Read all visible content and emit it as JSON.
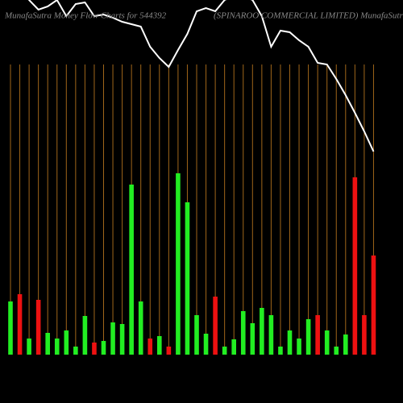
{
  "chart_data": {
    "type": "bar",
    "title": "MunafaSutra  Money Flow  Charts for 544392",
    "subtitle": "(SPINAROO COMMERCIAL  LIMITED) MunafaSutra.com",
    "categories": [
      null,
      null,
      null,
      null,
      null,
      null,
      null,
      null,
      null,
      null,
      null,
      null,
      null,
      null,
      null,
      null,
      null,
      null,
      null,
      null,
      null,
      null,
      null,
      null,
      null,
      null,
      null,
      null,
      null,
      null,
      null,
      null,
      null,
      null,
      null,
      null,
      null,
      null,
      null,
      null
    ],
    "values": [
      66,
      75,
      20,
      68,
      27,
      20,
      30,
      10,
      48,
      15,
      17,
      40,
      38,
      211,
      66,
      20,
      23,
      10,
      225,
      189,
      49,
      26,
      72,
      10,
      19,
      54,
      39,
      58,
      49,
      10,
      30,
      20,
      44,
      49,
      30,
      10,
      25,
      220,
      49,
      123
    ],
    "colors": [
      "#22ee22",
      "#ee1111",
      "#22ee22",
      "#ee1111",
      "#22ee22",
      "#22ee22",
      "#22ee22",
      "#22ee22",
      "#22ee22",
      "#ee1111",
      "#22ee22",
      "#22ee22",
      "#22ee22",
      "#22ee22",
      "#22ee22",
      "#ee1111",
      "#22ee22",
      "#ee1111",
      "#22ee22",
      "#22ee22",
      "#22ee22",
      "#22ee22",
      "#ee1111",
      "#22ee22",
      "#22ee22",
      "#22ee22",
      "#22ee22",
      "#22ee22",
      "#22ee22",
      "#22ee22",
      "#22ee22",
      "#22ee22",
      "#22ee22",
      "#ee1111",
      "#22ee22",
      "#22ee22",
      "#22ee22",
      "#ee1111",
      "#ee1111",
      "#ee1111"
    ],
    "line_values": [
      500,
      460,
      440,
      428,
      432,
      440,
      420,
      435,
      437,
      420,
      422,
      418,
      413,
      410,
      407,
      382,
      368,
      357,
      378,
      398,
      426,
      430,
      426,
      440,
      445,
      445,
      440,
      420,
      382,
      402,
      400,
      390,
      382,
      362,
      360,
      342,
      322,
      300,
      277,
      252
    ],
    "line_color": "#ffffff",
    "grid_color": "#a0661a",
    "ylim": [
      0,
      440
    ]
  }
}
